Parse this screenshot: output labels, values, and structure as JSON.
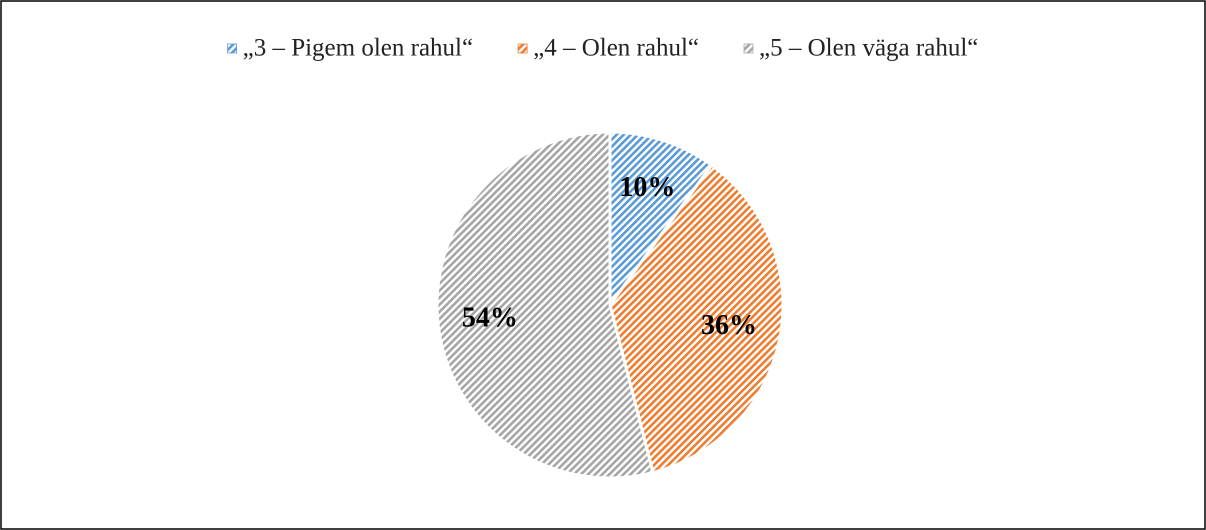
{
  "chart_data": {
    "type": "pie",
    "categories": [
      "„3 – Pigem olen rahul“",
      "„4 – Olen rahul“",
      "„5 – Olen väga rahul“"
    ],
    "values": [
      10,
      36,
      54
    ],
    "value_labels": [
      "10%",
      "36%",
      "54%"
    ],
    "colors": [
      "#5b9bd5",
      "#ed7d31",
      "#a5a5a5"
    ],
    "legend": "top"
  }
}
